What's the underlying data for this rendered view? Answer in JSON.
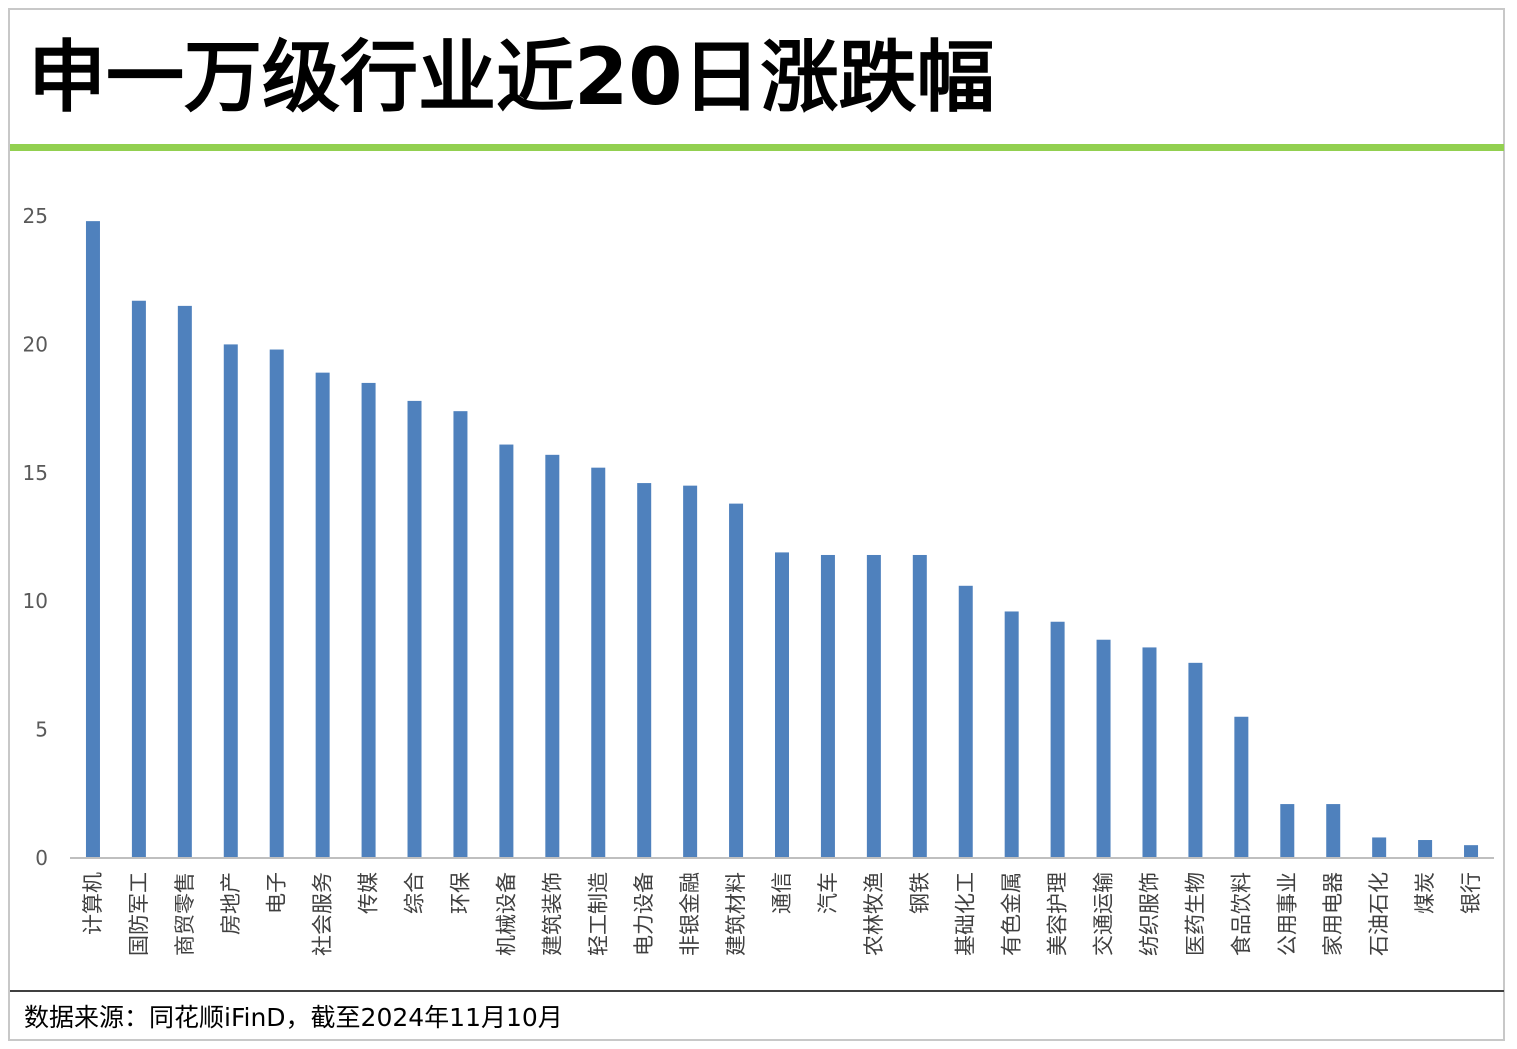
{
  "title": "申一万级行业近20日涨跌幅",
  "source": "数据来源：同花顺iFinD，截至2024年11月10月",
  "colors": {
    "bar": "#4f81bd",
    "accent_rule": "#92d050"
  },
  "chart_data": {
    "type": "bar",
    "title": "申一万级行业近20日涨跌幅",
    "xlabel": "",
    "ylabel": "",
    "ylim": [
      0,
      25
    ],
    "yticks": [
      0,
      5,
      10,
      15,
      20,
      25
    ],
    "grid": false,
    "categories": [
      "计算机",
      "国防军工",
      "商贸零售",
      "房地产",
      "电子",
      "社会服务",
      "传媒",
      "综合",
      "环保",
      "机械设备",
      "建筑装饰",
      "轻工制造",
      "电力设备",
      "非银金融",
      "建筑材料",
      "通信",
      "汽车",
      "农林牧渔",
      "钢铁",
      "基础化工",
      "有色金属",
      "美容护理",
      "交通运输",
      "纺织服饰",
      "医药生物",
      "食品饮料",
      "公用事业",
      "家用电器",
      "石油石化",
      "煤炭",
      "银行"
    ],
    "values": [
      24.8,
      21.7,
      21.5,
      20.0,
      19.8,
      18.9,
      18.5,
      17.8,
      17.4,
      16.1,
      15.7,
      15.2,
      14.6,
      14.5,
      13.8,
      11.9,
      11.8,
      11.8,
      11.8,
      10.6,
      9.6,
      9.2,
      8.5,
      8.2,
      7.6,
      5.5,
      2.1,
      2.1,
      0.8,
      0.7,
      0.5
    ]
  }
}
